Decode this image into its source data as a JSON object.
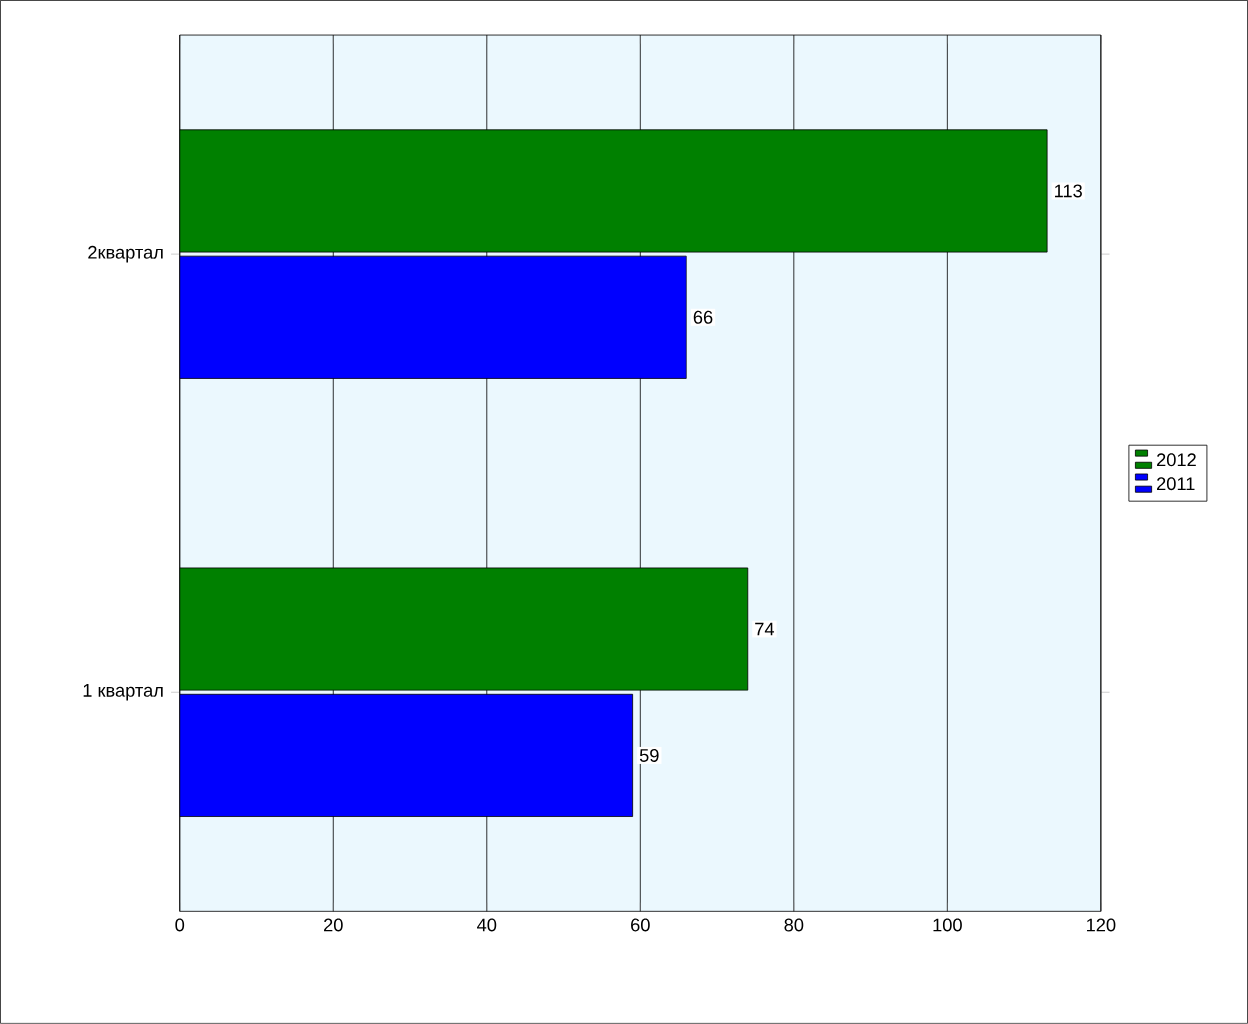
{
  "chart_data": {
    "type": "bar",
    "orientation": "horizontal",
    "categories": [
      "2квартал",
      "1 квартал"
    ],
    "series": [
      {
        "name": "2012",
        "color": "#008000",
        "values": [
          113,
          74
        ]
      },
      {
        "name": "2011",
        "color": "#0000ff",
        "values": [
          66,
          59
        ]
      }
    ],
    "data_labels": true,
    "xlim": [
      0,
      120
    ],
    "xticks": [
      0,
      20,
      40,
      60,
      80,
      100,
      120
    ],
    "grid": "x",
    "legend": "right"
  }
}
